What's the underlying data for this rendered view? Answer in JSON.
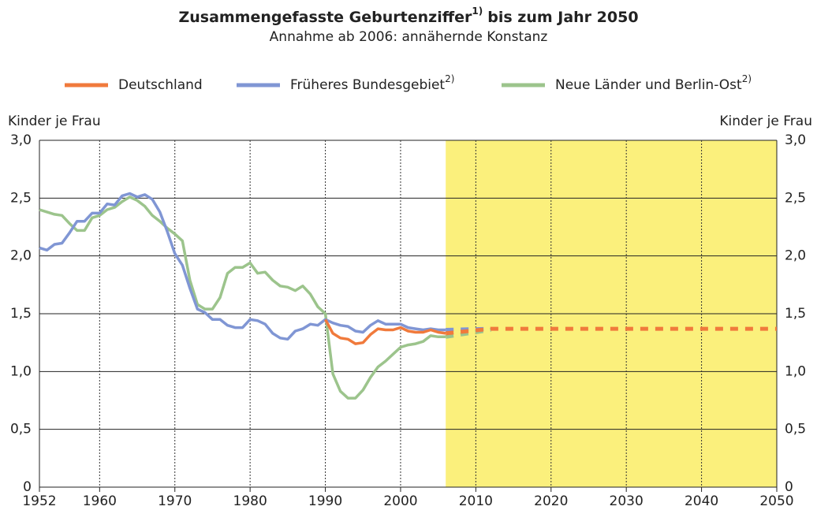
{
  "chart_data": {
    "type": "line",
    "title": "Zusammengefasste Geburtenziffer",
    "title_note": "1)",
    "title_end": "bis zum Jahr 2050",
    "subtitle": "Annahme ab 2006: annähernde Konstanz",
    "y_label": "Kinder je Frau",
    "y2_label": "Kinder je Frau",
    "forecast_from": 2006,
    "shade_from": 2006,
    "shade_color": "#fbf07c",
    "grid": true,
    "legend": "top",
    "xlim": [
      1952,
      2050
    ],
    "xticks": [
      1952,
      1960,
      1970,
      1980,
      1990,
      2000,
      2010,
      2020,
      2030,
      2040,
      2050
    ],
    "ylim": [
      0,
      3
    ],
    "yticks": [
      0,
      {
        "value": 0.5,
        "label": "0,5"
      },
      {
        "value": 1,
        "label": "1,0"
      },
      {
        "value": 1.5,
        "label": "1,5"
      },
      {
        "value": 2,
        "label": "2,0"
      },
      {
        "value": 2.5,
        "label": "2,5"
      },
      {
        "value": 3,
        "label": "3,0"
      }
    ],
    "y2lim": [
      0,
      3
    ],
    "y2ticks": [
      0,
      {
        "value": 0.5,
        "label": "0,5"
      },
      {
        "value": 1,
        "label": "1,0"
      },
      {
        "value": 1.5,
        "label": "1,5"
      },
      {
        "value": 2,
        "label": "2,0"
      },
      {
        "value": 2.5,
        "label": "2,5"
      },
      {
        "value": 3,
        "label": "3,0"
      }
    ],
    "x": [
      1952,
      1953,
      1954,
      1955,
      1956,
      1957,
      1958,
      1959,
      1960,
      1961,
      1962,
      1963,
      1964,
      1965,
      1966,
      1967,
      1968,
      1969,
      1970,
      1971,
      1972,
      1973,
      1974,
      1975,
      1976,
      1977,
      1978,
      1979,
      1980,
      1981,
      1982,
      1983,
      1984,
      1985,
      1986,
      1987,
      1988,
      1989,
      1990,
      1991,
      1992,
      1993,
      1994,
      1995,
      1996,
      1997,
      1998,
      1999,
      2000,
      2001,
      2002,
      2003,
      2004,
      2005,
      2006,
      2012,
      2050
    ],
    "series": [
      {
        "name": "Deutschland",
        "color": "#f07a3c",
        "values": [
          null,
          null,
          null,
          null,
          null,
          null,
          null,
          null,
          null,
          null,
          null,
          null,
          null,
          null,
          null,
          null,
          null,
          null,
          null,
          null,
          null,
          null,
          null,
          null,
          null,
          null,
          null,
          null,
          null,
          null,
          null,
          null,
          null,
          null,
          null,
          null,
          null,
          null,
          1.45,
          1.33,
          1.29,
          1.28,
          1.24,
          1.25,
          1.32,
          1.37,
          1.36,
          1.36,
          1.38,
          1.35,
          1.34,
          1.34,
          1.36,
          1.34,
          1.33,
          1.37,
          1.37
        ]
      },
      {
        "name": "Früheres Bundesgebiet",
        "name_note": "2)",
        "color": "#8096d4",
        "values": [
          2.07,
          2.05,
          2.1,
          2.11,
          2.2,
          2.3,
          2.3,
          2.37,
          2.37,
          2.45,
          2.44,
          2.52,
          2.54,
          2.51,
          2.53,
          2.49,
          2.38,
          2.21,
          2.02,
          1.92,
          1.72,
          1.54,
          1.51,
          1.45,
          1.45,
          1.4,
          1.38,
          1.38,
          1.45,
          1.44,
          1.41,
          1.33,
          1.29,
          1.28,
          1.35,
          1.37,
          1.41,
          1.4,
          1.45,
          1.42,
          1.4,
          1.39,
          1.35,
          1.34,
          1.4,
          1.44,
          1.41,
          1.41,
          1.41,
          1.38,
          1.37,
          1.36,
          1.37,
          1.36,
          1.36,
          1.37,
          null
        ]
      },
      {
        "name": "Neue Länder und Berlin-Ost",
        "name_note": "2)",
        "color": "#9cc48c",
        "values": [
          2.4,
          2.38,
          2.36,
          2.35,
          2.28,
          2.22,
          2.22,
          2.33,
          2.35,
          2.4,
          2.42,
          2.47,
          2.51,
          2.48,
          2.43,
          2.35,
          2.3,
          2.24,
          2.19,
          2.13,
          1.79,
          1.58,
          1.54,
          1.54,
          1.64,
          1.85,
          1.9,
          1.9,
          1.94,
          1.85,
          1.86,
          1.79,
          1.74,
          1.73,
          1.7,
          1.74,
          1.67,
          1.56,
          1.5,
          0.98,
          0.83,
          0.77,
          0.77,
          0.84,
          0.95,
          1.04,
          1.09,
          1.15,
          1.21,
          1.23,
          1.24,
          1.26,
          1.31,
          1.3,
          1.3,
          1.36,
          null
        ]
      }
    ]
  }
}
